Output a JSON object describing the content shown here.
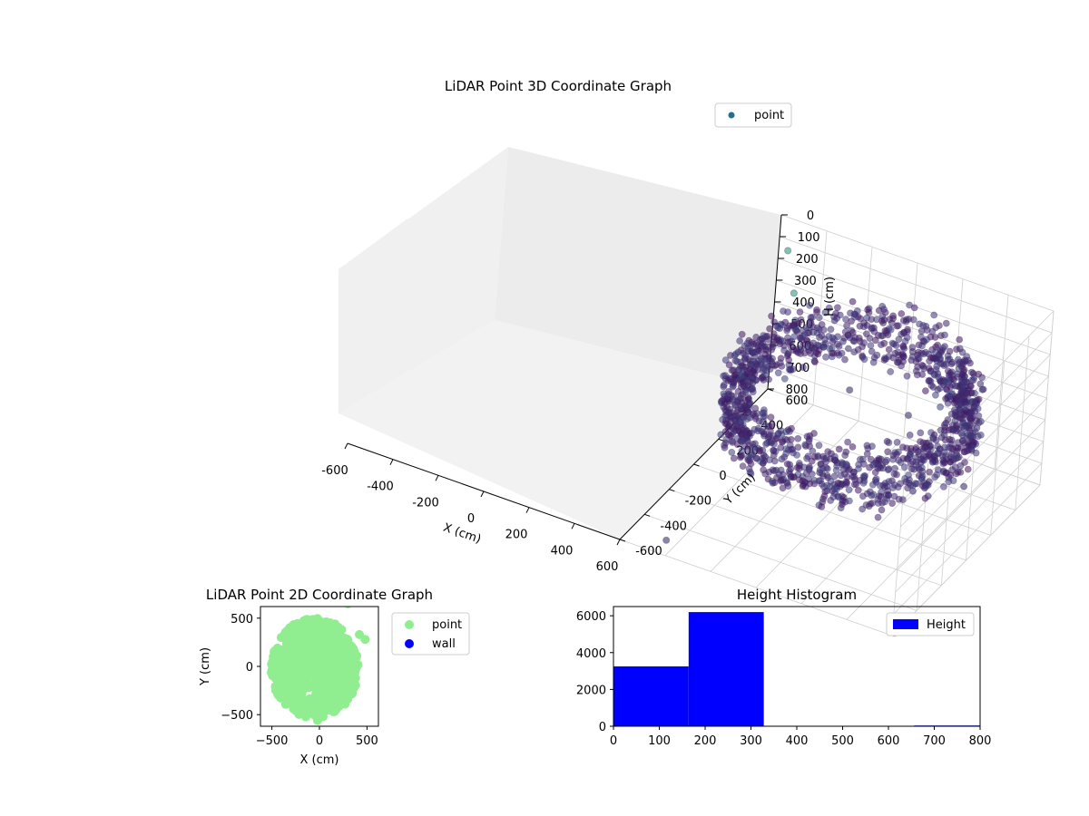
{
  "chart_data": [
    {
      "type": "scatter",
      "projection": "3d",
      "title": "LiDAR Point 3D Coordinate Graph",
      "xlabel": "X (cm)",
      "ylabel": "Y (cm)",
      "zlabel": "H (cm)",
      "xlim": [
        -600,
        600
      ],
      "ylim": [
        -600,
        600
      ],
      "zlim": [
        0,
        800
      ],
      "z_inverted": true,
      "x_ticks": [
        "-600",
        "-400",
        "-200",
        "0",
        "200",
        "400",
        "600"
      ],
      "y_ticks": [
        "-600",
        "-400",
        "-200",
        "0",
        "200",
        "400",
        "600"
      ],
      "z_ticks": [
        "0",
        "100",
        "200",
        "300",
        "400",
        "500",
        "600",
        "700",
        "800"
      ],
      "grid": true,
      "legend": {
        "labels": [
          "point"
        ],
        "position": "top-right"
      },
      "colormap": "viridis",
      "series": [
        {
          "name": "point",
          "points_note": "dense ring of points around x -500..400, y -500..500, heights roughly 150-400 cm; sparse outliers down to ~800 cm",
          "outliers": [
            {
              "x": -560,
              "y": -520,
              "h": 780
            },
            {
              "x": -600,
              "y": -580,
              "h": 800
            },
            {
              "x": 420,
              "y": -560,
              "h": 760
            },
            {
              "x": -420,
              "y": 300,
              "h": 700
            },
            {
              "x": -300,
              "y": 100,
              "h": 650
            },
            {
              "x": 200,
              "y": 500,
              "h": 600
            },
            {
              "x": -100,
              "y": 420,
              "h": 560
            },
            {
              "x": 500,
              "y": 560,
              "h": 300
            },
            {
              "x": 560,
              "y": 600,
              "h": 150
            }
          ]
        }
      ]
    },
    {
      "type": "scatter",
      "title": "LiDAR Point 2D Coordinate Graph",
      "xlabel": "X (cm)",
      "ylabel": "Y (cm)",
      "xlim": [
        -620,
        620
      ],
      "ylim": [
        -620,
        620
      ],
      "x_ticks": [
        "−500",
        "0",
        "500"
      ],
      "y_ticks": [
        "−500",
        "0",
        "500"
      ],
      "legend": {
        "labels": [
          "point",
          "wall"
        ],
        "position": "outside-right"
      },
      "series": [
        {
          "name": "point",
          "color": "#90ee90",
          "extent_note": "dense blob spanning x -520..420, y -580..540"
        },
        {
          "name": "wall",
          "color": "#0000ff",
          "count": 0
        }
      ]
    },
    {
      "type": "bar",
      "subtype": "histogram",
      "title": "Height Histogram",
      "xlim": [
        0,
        800
      ],
      "ylim": [
        0,
        6500
      ],
      "x_ticks": [
        "0",
        "100",
        "200",
        "300",
        "400",
        "500",
        "600",
        "700",
        "800"
      ],
      "y_ticks": [
        "0",
        "2000",
        "4000",
        "6000"
      ],
      "legend": {
        "labels": [
          "Height"
        ],
        "position": "top-right"
      },
      "color": "#0000ff",
      "series": [
        {
          "name": "Height",
          "bins": [
            {
              "from": 0,
              "to": 164,
              "count": 3250
            },
            {
              "from": 164,
              "to": 328,
              "count": 6200
            },
            {
              "from": 328,
              "to": 492,
              "count": 0
            },
            {
              "from": 492,
              "to": 656,
              "count": 0
            },
            {
              "from": 656,
              "to": 820,
              "count": 40
            }
          ]
        }
      ]
    }
  ]
}
